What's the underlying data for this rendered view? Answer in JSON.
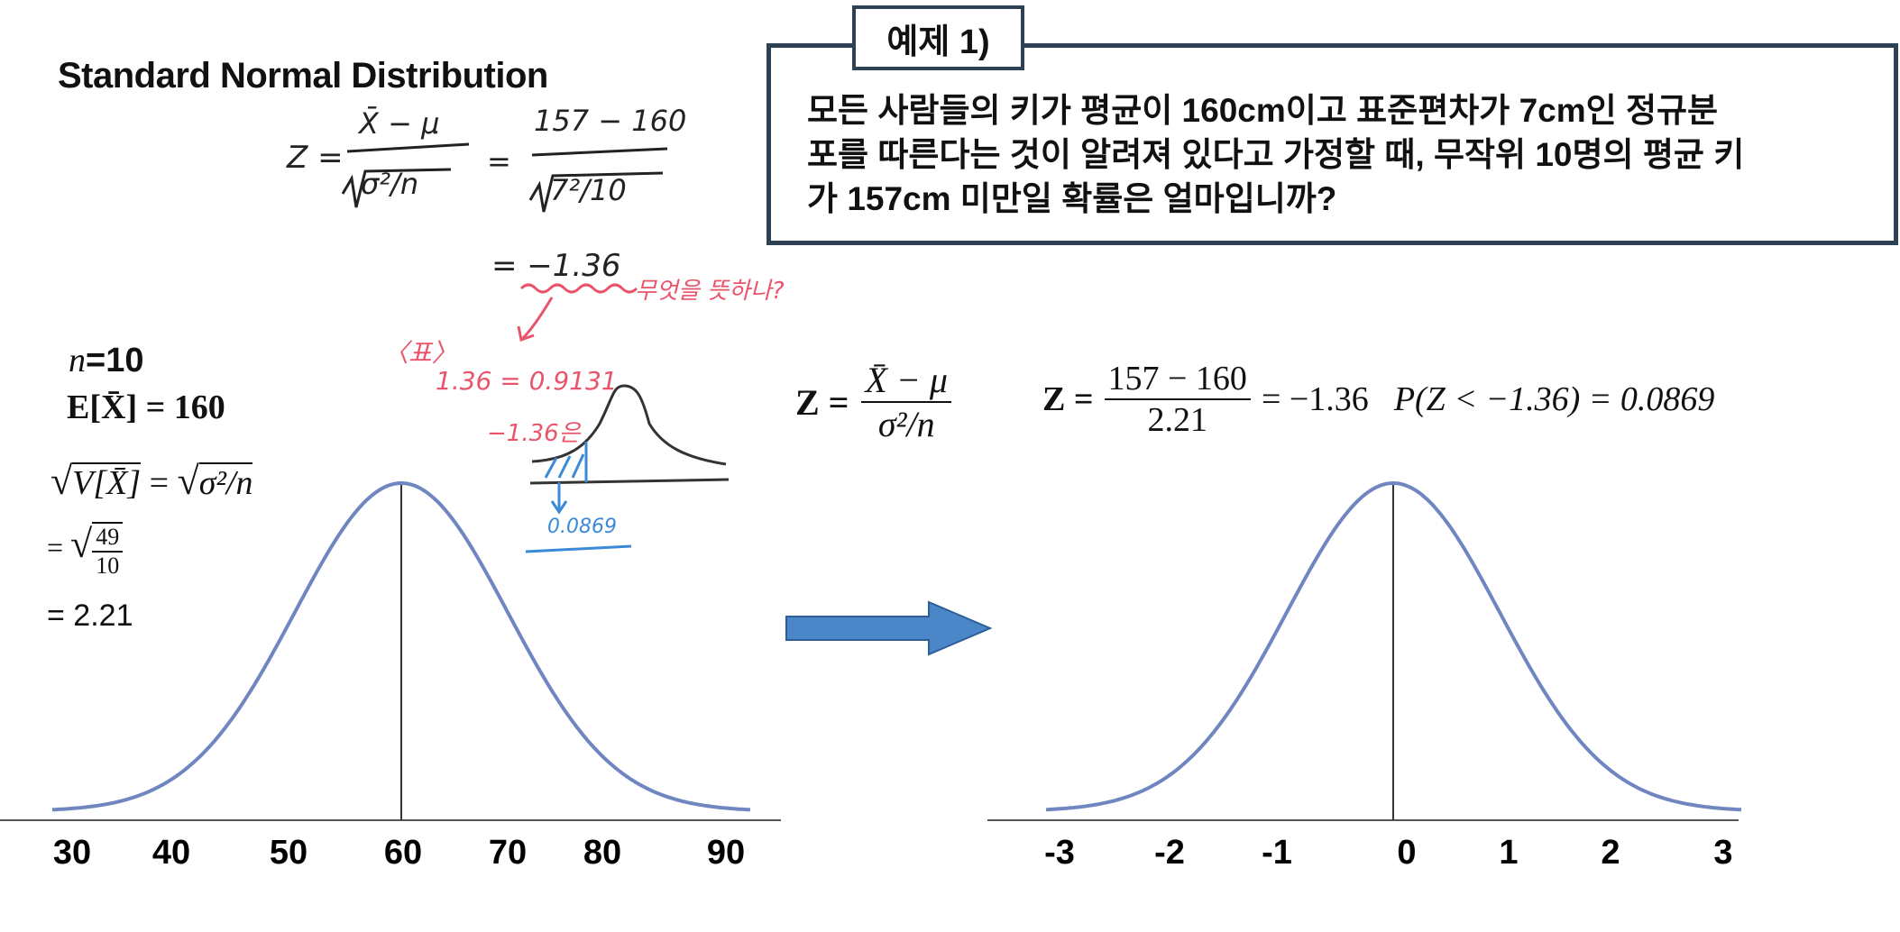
{
  "title": "Standard Normal Distribution",
  "example": {
    "tab_label": "예제 1)",
    "lines": [
      "모든 사람들의 키가 평균이 160cm이고 표준편차가 7cm인 정규분",
      "포를 따른다는 것이 알려져 있다고 가정할 때, 무작위 10명의 평균 키",
      "가 157cm 미만일 확률은 얼마입니까?"
    ]
  },
  "handwritten": {
    "z_lhs": "Z =",
    "xbar_mu": "X̄ − μ",
    "sigma_n": "σ²/n",
    "eq": "=",
    "num": "157 − 160",
    "den": "7²/10",
    "result": "= −1.36",
    "note_red": "무엇을 뜻하나?",
    "table_label": "〈표〉",
    "table_value": "1.36 = 0.9131",
    "neg_note": "−1.36은",
    "answer_blue": "0.0869"
  },
  "left_info": {
    "n_line": "=10",
    "n_var": "n",
    "e_line_lhs": "E[X̄]",
    "e_line_rhs": "= 160",
    "v_line_lhs": "V[X̄]",
    "v_line_eq": "=",
    "v_line_rhs": "σ²/n",
    "frac_eq": "=",
    "frac_num": "49",
    "frac_den": "10",
    "final": "= 2.21"
  },
  "formula_center": {
    "lhs": "Z =",
    "num": "X̄ − μ",
    "den": "σ²/n"
  },
  "formula_right": {
    "lhs": "Z =",
    "num": "157 − 160",
    "den": "2.21",
    "rhs": "= −1.36",
    "prob": "P(Z < −1.36) = 0.0869"
  },
  "left_axis_ticks": [
    "30",
    "40",
    "50",
    "60",
    "70",
    "80",
    "90"
  ],
  "right_axis_ticks": [
    "-3",
    "-2",
    "-1",
    "0",
    "1",
    "2",
    "3"
  ],
  "colors": {
    "curve": "#6f86c1",
    "box_border": "#2e4053",
    "arrow_fill": "#4a86c8",
    "red_ink": "#e9546b",
    "blue_ink": "#3b8ad8"
  }
}
